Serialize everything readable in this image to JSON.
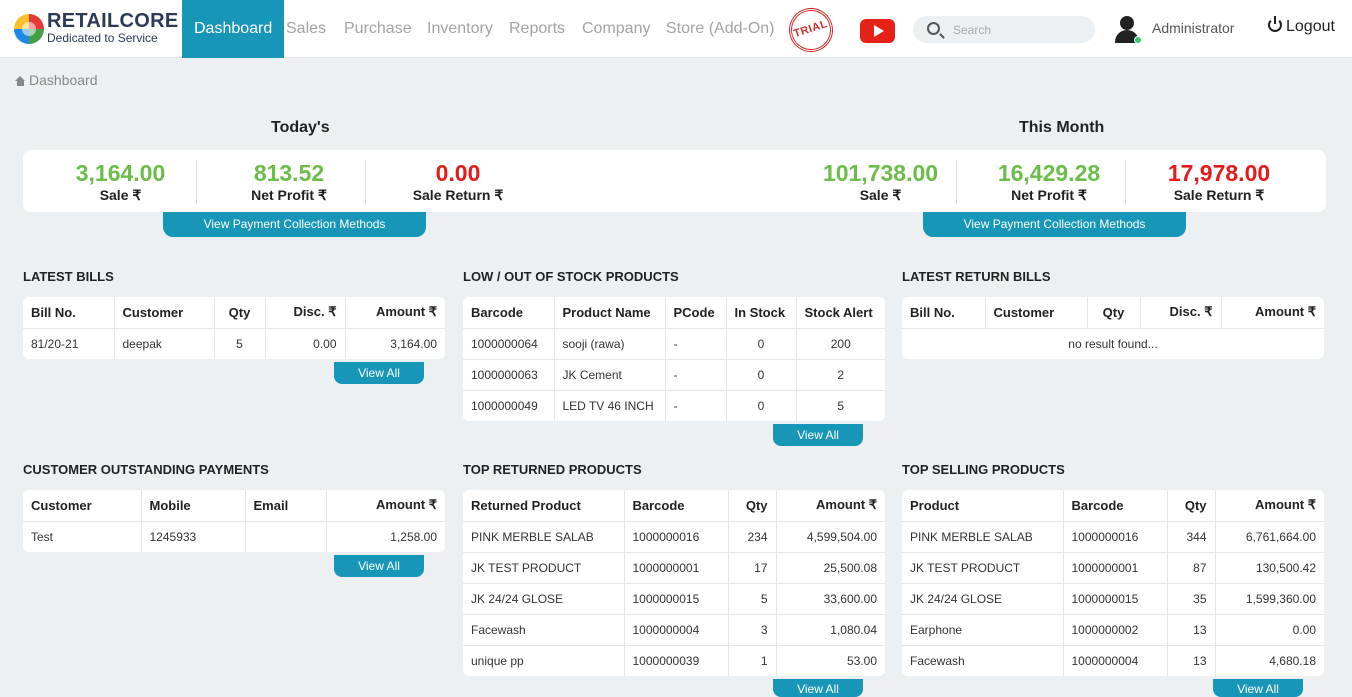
{
  "brand": {
    "name": "RETAILCORE",
    "tagline": "Dedicated to Service"
  },
  "nav": {
    "items": [
      "Dashboard",
      "Sales",
      "Purchase",
      "Inventory",
      "Reports",
      "Company",
      "Store (Add-On)"
    ],
    "active": "Dashboard"
  },
  "badge": {
    "trial": "TRIAL"
  },
  "search": {
    "placeholder": "Search"
  },
  "user": {
    "name": "Administrator",
    "logout": "Logout"
  },
  "breadcrumb": {
    "label": "Dashboard"
  },
  "colors": {
    "accent": "#1796b7",
    "positive": "#6cbc4a",
    "negative": "#e31b1b"
  },
  "today": {
    "title": "Today's",
    "sale": "3,164.00",
    "sale_label": "Sale ₹",
    "net_profit": "813.52",
    "net_profit_label": "Net Profit ₹",
    "sale_return": "0.00",
    "sale_return_label": "Sale Return ₹",
    "button": "View Payment Collection Methods"
  },
  "month": {
    "title": "This Month",
    "sale": "101,738.00",
    "sale_label": "Sale ₹",
    "net_profit": "16,429.28",
    "net_profit_label": "Net Profit ₹",
    "sale_return": "17,978.00",
    "sale_return_label": "Sale Return ₹",
    "button": "View Payment Collection Methods"
  },
  "view_all": "View All",
  "latest_bills": {
    "title": "LATEST BILLS",
    "columns": [
      "Bill No.",
      "Customer",
      "Qty",
      "Disc. ₹",
      "Amount ₹"
    ],
    "rows": [
      [
        "81/20-21",
        "deepak",
        "5",
        "0.00",
        "3,164.00"
      ]
    ]
  },
  "low_stock": {
    "title": "LOW / OUT OF STOCK PRODUCTS",
    "columns": [
      "Barcode",
      "Product Name",
      "PCode",
      "In Stock",
      "Stock Alert"
    ],
    "rows": [
      [
        "1000000064",
        "sooji (rawa)",
        "-",
        "0",
        "200"
      ],
      [
        "1000000063",
        "JK Cement",
        "-",
        "0",
        "2"
      ],
      [
        "1000000049",
        "LED TV 46 INCH",
        "-",
        "0",
        "5"
      ]
    ]
  },
  "latest_returns": {
    "title": "LATEST RETURN BILLS",
    "columns": [
      "Bill No.",
      "Customer",
      "Qty",
      "Disc. ₹",
      "Amount ₹"
    ],
    "empty": "no result found..."
  },
  "outstanding": {
    "title": "CUSTOMER OUTSTANDING PAYMENTS",
    "columns": [
      "Customer",
      "Mobile",
      "Email",
      "Amount ₹"
    ],
    "rows": [
      [
        "Test",
        "1245933",
        "",
        "1,258.00"
      ]
    ]
  },
  "top_returned": {
    "title": "TOP RETURNED PRODUCTS",
    "columns": [
      "Returned Product",
      "Barcode",
      "Qty",
      "Amount ₹"
    ],
    "rows": [
      [
        "PINK MERBLE SALAB",
        "1000000016",
        "234",
        "4,599,504.00"
      ],
      [
        "JK TEST PRODUCT",
        "1000000001",
        "17",
        "25,500.08"
      ],
      [
        "JK 24/24 GLOSE",
        "1000000015",
        "5",
        "33,600.00"
      ],
      [
        "Facewash",
        "1000000004",
        "3",
        "1,080.04"
      ],
      [
        "unique pp",
        "1000000039",
        "1",
        "53.00"
      ]
    ]
  },
  "top_selling": {
    "title": "TOP SELLING PRODUCTS",
    "columns": [
      "Product",
      "Barcode",
      "Qty",
      "Amount ₹"
    ],
    "rows": [
      [
        "PINK MERBLE SALAB",
        "1000000016",
        "344",
        "6,761,664.00"
      ],
      [
        "JK TEST PRODUCT",
        "1000000001",
        "87",
        "130,500.42"
      ],
      [
        "JK 24/24 GLOSE",
        "1000000015",
        "35",
        "1,599,360.00"
      ],
      [
        "Earphone",
        "1000000002",
        "13",
        "0.00"
      ],
      [
        "Facewash",
        "1000000004",
        "13",
        "4,680.18"
      ]
    ]
  }
}
